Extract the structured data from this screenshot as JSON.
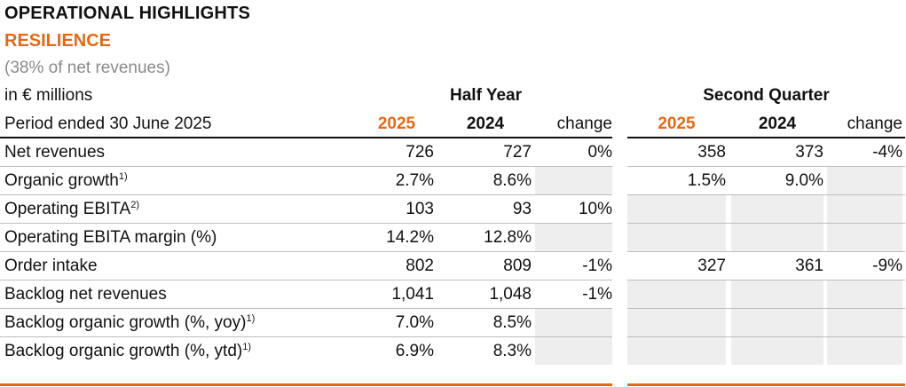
{
  "title": "OPERATIONAL HIGHLIGHTS",
  "subtitle": "RESILIENCE",
  "note": "(38% of net revenues)",
  "header": {
    "units": "in € millions",
    "half_year": "Half Year",
    "second_quarter": "Second Quarter",
    "period": "Period ended 30 June 2025",
    "y2025": "2025",
    "y2024": "2024",
    "change": "change"
  },
  "rows": [
    {
      "label": "Net revenues",
      "sup": "",
      "hy2025": "726",
      "hy2024": "727",
      "hychg": "0%",
      "q2025": "358",
      "q2024": "373",
      "qchg": "-4%"
    },
    {
      "label": "Organic growth",
      "sup": "1)",
      "hy2025": "2.7%",
      "hy2024": "8.6%",
      "hychg": "",
      "q2025": "1.5%",
      "q2024": "9.0%",
      "qchg": ""
    },
    {
      "label": "Operating EBITA",
      "sup": "2)",
      "hy2025": "103",
      "hy2024": "93",
      "hychg": "10%",
      "q2025": "",
      "q2024": "",
      "qchg": ""
    },
    {
      "label": "Operating EBITA margin (%)",
      "sup": "",
      "hy2025": "14.2%",
      "hy2024": "12.8%",
      "hychg": "",
      "q2025": "",
      "q2024": "",
      "qchg": ""
    },
    {
      "label": "Order intake",
      "sup": "",
      "hy2025": "802",
      "hy2024": "809",
      "hychg": "-1%",
      "q2025": "327",
      "q2024": "361",
      "qchg": "-9%"
    },
    {
      "label": "Backlog net revenues",
      "sup": "",
      "hy2025": "1,041",
      "hy2024": "1,048",
      "hychg": "-1%",
      "q2025": "",
      "q2024": "",
      "qchg": ""
    },
    {
      "label": "Backlog organic growth (%, yoy)",
      "sup": "1)",
      "hy2025": "7.0%",
      "hy2024": "8.5%",
      "hychg": "",
      "q2025": "",
      "q2024": "",
      "qchg": ""
    },
    {
      "label": "Backlog organic growth (%, ytd)",
      "sup": "1)",
      "hy2025": "6.9%",
      "hy2024": "8.3%",
      "hychg": "",
      "q2025": "",
      "q2024": "",
      "qchg": ""
    }
  ],
  "colors": {
    "accent": "#e06a1a",
    "shade": "#eeeeee"
  }
}
